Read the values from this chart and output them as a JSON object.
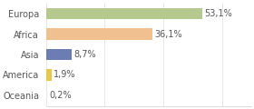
{
  "categories": [
    "Europa",
    "Africa",
    "Asia",
    "America",
    "Oceania"
  ],
  "values": [
    53.1,
    36.1,
    8.7,
    1.9,
    0.2
  ],
  "bar_colors": [
    "#b5c98e",
    "#f0c090",
    "#6b7db3",
    "#e8c84a",
    "#70b870"
  ],
  "labels": [
    "53,1%",
    "36,1%",
    "8,7%",
    "1,9%",
    "0,2%"
  ],
  "xlim": [
    0,
    70
  ],
  "background_color": "#ffffff",
  "label_fontsize": 7.0,
  "tick_fontsize": 7.0,
  "bar_height": 0.55,
  "figsize": [
    2.8,
    1.2
  ],
  "dpi": 100
}
